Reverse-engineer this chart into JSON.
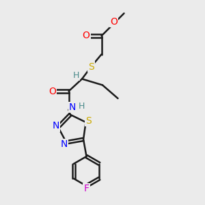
{
  "background_color": "#ebebeb",
  "bond_color": "#1a1a1a",
  "bond_width": 1.8,
  "atom_colors": {
    "O": "#ff0000",
    "S": "#ccaa00",
    "N": "#0000ff",
    "F": "#cc00cc",
    "H": "#4a8a8a",
    "C": "#1a1a1a"
  },
  "figsize": [
    3.0,
    3.0
  ],
  "dpi": 100
}
